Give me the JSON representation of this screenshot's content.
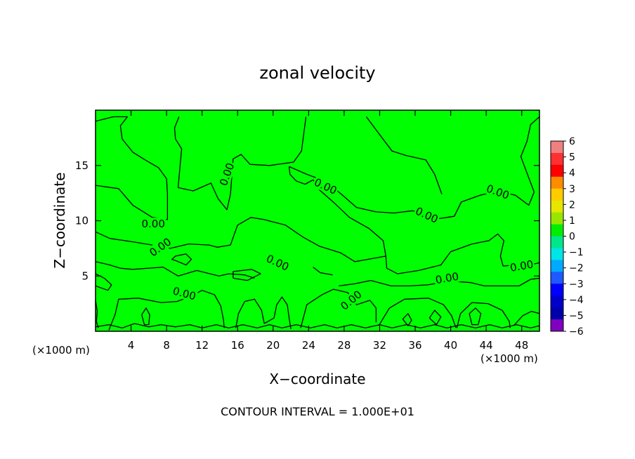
{
  "chart_data": {
    "type": "contour",
    "title": "zonal velocity",
    "xlabel": "X−coordinate",
    "ylabel": "Z−coordinate",
    "x_unit": "(×1000 m)",
    "y_unit": "(×1000 m)",
    "xlim": [
      0,
      50
    ],
    "ylim": [
      0,
      20
    ],
    "x_ticks": [
      4,
      8,
      12,
      16,
      20,
      24,
      28,
      32,
      36,
      40,
      44,
      48
    ],
    "x_tick_labels": [
      "4",
      "8",
      "12",
      "16",
      "20",
      "24",
      "28",
      "32",
      "36",
      "40",
      "44",
      "48"
    ],
    "y_ticks": [
      5,
      10,
      15
    ],
    "y_tick_labels": [
      "5",
      "10",
      "15"
    ],
    "fill_color": "#00ff00",
    "contour_level": "0.00",
    "contour_label": "0.00",
    "contour_label_sites": [
      {
        "x": 14.8,
        "y": 14.2,
        "angle": -70
      },
      {
        "x": 25.9,
        "y": 13.1,
        "angle": 25
      },
      {
        "x": 37.3,
        "y": 10.5,
        "angle": 25
      },
      {
        "x": 45.3,
        "y": 12.6,
        "angle": 20
      },
      {
        "x": 6.5,
        "y": 9.7,
        "angle": 0
      },
      {
        "x": 7.3,
        "y": 7.6,
        "angle": -35
      },
      {
        "x": 20.5,
        "y": 6.2,
        "angle": 25
      },
      {
        "x": 39.6,
        "y": 4.8,
        "angle": -10
      },
      {
        "x": 48.0,
        "y": 5.9,
        "angle": -10
      },
      {
        "x": 10.0,
        "y": 3.4,
        "angle": 15
      },
      {
        "x": 28.8,
        "y": 2.8,
        "angle": -40
      }
    ],
    "contours": [
      [
        [
          0,
          19
        ],
        [
          2,
          19.4
        ],
        [
          3.6,
          19.4
        ]
      ],
      [
        [
          3.6,
          19.4
        ],
        [
          2.8,
          18.6
        ],
        [
          3,
          17.4
        ],
        [
          4.2,
          16.2
        ],
        [
          5.8,
          15.4
        ],
        [
          7.1,
          14.8
        ],
        [
          8,
          13.8
        ],
        [
          8.1,
          12.4
        ],
        [
          8.1,
          10.1
        ],
        [
          6.4,
          10.3
        ],
        [
          4.2,
          11.4
        ],
        [
          2.6,
          12.9
        ],
        [
          0,
          13.2
        ]
      ],
      [
        [
          9.4,
          19.4
        ],
        [
          8.9,
          18.4
        ],
        [
          9,
          17.4
        ],
        [
          9.7,
          16.5
        ],
        [
          9.5,
          14.8
        ],
        [
          9.3,
          13
        ],
        [
          11,
          12.7
        ],
        [
          13,
          13.4
        ],
        [
          13.8,
          12
        ],
        [
          14.8,
          11
        ],
        [
          15.2,
          12.4
        ],
        [
          15.5,
          15.6
        ],
        [
          16.4,
          16
        ],
        [
          17.4,
          15.1
        ],
        [
          19.6,
          15
        ],
        [
          22.3,
          15.3
        ],
        [
          23.2,
          16.3
        ],
        [
          23.7,
          19.4
        ]
      ],
      [
        [
          0,
          9
        ],
        [
          1.6,
          8.4
        ],
        [
          4.1,
          8.1
        ],
        [
          6.4,
          7.8
        ],
        [
          8.4,
          7.5
        ],
        [
          10.5,
          7.9
        ],
        [
          12.8,
          7.8
        ],
        [
          13.7,
          7.6
        ],
        [
          15.2,
          7.8
        ],
        [
          16,
          9.6
        ],
        [
          17.5,
          10.3
        ],
        [
          19,
          10.1
        ],
        [
          21.4,
          9.6
        ],
        [
          23.4,
          8.5
        ],
        [
          25.2,
          7.7
        ],
        [
          27.6,
          7.1
        ],
        [
          29.2,
          6.3
        ],
        [
          31.3,
          6.6
        ],
        [
          32.7,
          6.8
        ],
        [
          32.4,
          8.2
        ],
        [
          30.8,
          9.3
        ],
        [
          28.6,
          10.3
        ],
        [
          26.9,
          11.6
        ],
        [
          25.2,
          12.8
        ],
        [
          24.5,
          13.7
        ],
        [
          23.6,
          13.3
        ],
        [
          22.6,
          13.6
        ],
        [
          21.9,
          14.2
        ],
        [
          21.8,
          14.9
        ]
      ],
      [
        [
          21.8,
          14.9
        ],
        [
          23.8,
          14.2
        ],
        [
          25.8,
          13.6
        ],
        [
          27.7,
          12.4
        ],
        [
          29.4,
          11.2
        ],
        [
          31.6,
          10.8
        ],
        [
          33.6,
          10.7
        ],
        [
          35.7,
          10.9
        ],
        [
          38.7,
          10.2
        ],
        [
          40.4,
          10.4
        ],
        [
          41.2,
          11.7
        ],
        [
          43.3,
          12.3
        ],
        [
          45.3,
          12.7
        ],
        [
          47.3,
          12.3
        ],
        [
          48.8,
          11.4
        ],
        [
          49.4,
          12.6
        ],
        [
          48.6,
          14.3
        ],
        [
          47.9,
          15.8
        ],
        [
          48.6,
          17.2
        ],
        [
          49,
          18.7
        ],
        [
          50,
          19.4
        ]
      ],
      [
        [
          30.5,
          19.4
        ],
        [
          31.9,
          17.9
        ],
        [
          33.4,
          16.3
        ],
        [
          35,
          15.9
        ],
        [
          37.2,
          15.5
        ],
        [
          38.2,
          14.2
        ],
        [
          39,
          12.4
        ]
      ],
      [
        [
          32.7,
          6.8
        ],
        [
          32.8,
          5.7
        ],
        [
          34,
          5.2
        ],
        [
          36.4,
          5.5
        ],
        [
          38.9,
          6
        ],
        [
          40,
          7.2
        ],
        [
          42.4,
          7.9
        ],
        [
          44.3,
          8.2
        ],
        [
          45.3,
          8.8
        ],
        [
          46,
          8.2
        ],
        [
          45.6,
          6.8
        ],
        [
          45.9,
          5.9
        ]
      ],
      [
        [
          45.9,
          5.9
        ],
        [
          47.2,
          6
        ],
        [
          48.9,
          6
        ],
        [
          50,
          6.2
        ]
      ],
      [
        [
          0,
          6.3
        ],
        [
          1.6,
          6
        ],
        [
          2.8,
          5.7
        ],
        [
          4.2,
          5.6
        ],
        [
          7.6,
          5.8
        ],
        [
          9.3,
          5
        ],
        [
          11.4,
          5.5
        ],
        [
          13.9,
          5
        ],
        [
          15,
          5.2
        ],
        [
          16.8,
          5.1
        ],
        [
          17.9,
          4.8
        ]
      ],
      [
        [
          0,
          4.1
        ],
        [
          1.4,
          3.7
        ],
        [
          1.8,
          4.2
        ],
        [
          1,
          4.8
        ],
        [
          0,
          5.2
        ]
      ],
      [
        [
          9,
          6.4
        ],
        [
          10.2,
          6
        ],
        [
          10.8,
          6.5
        ],
        [
          10.2,
          7
        ],
        [
          9,
          6.8
        ],
        [
          8.6,
          6.5
        ],
        [
          9,
          6.4
        ]
      ],
      [
        [
          15.5,
          4.8
        ],
        [
          17.1,
          4.6
        ],
        [
          18.6,
          5.2
        ],
        [
          17.6,
          5.6
        ],
        [
          15.5,
          5.4
        ],
        [
          15.5,
          4.8
        ]
      ],
      [
        [
          27.4,
          4.1
        ],
        [
          29.2,
          4.3
        ],
        [
          31,
          4.6
        ],
        [
          33.3,
          4.1
        ],
        [
          35.3,
          4.1
        ],
        [
          37.4,
          4.2
        ],
        [
          38.9,
          4.4
        ],
        [
          40.6,
          4.5
        ],
        [
          42.3,
          4.4
        ],
        [
          43.8,
          4.1
        ],
        [
          46.1,
          4.1
        ],
        [
          47.7,
          4.1
        ],
        [
          49,
          4.7
        ],
        [
          50,
          4.8
        ]
      ],
      [
        [
          26.7,
          5.1
        ],
        [
          25.3,
          5.3
        ],
        [
          24.5,
          5.8
        ]
      ],
      [
        [
          1.5,
          0.1
        ],
        [
          2.2,
          1.5
        ],
        [
          2.6,
          2.9
        ],
        [
          4.8,
          3
        ],
        [
          7.4,
          2.6
        ],
        [
          9.2,
          2.7
        ],
        [
          10.8,
          3.2
        ],
        [
          12,
          3.7
        ],
        [
          13.4,
          3.3
        ],
        [
          14.1,
          2.3
        ],
        [
          14.4,
          1.1
        ],
        [
          14.5,
          0.3
        ]
      ],
      [
        [
          15.8,
          0.3
        ],
        [
          16.1,
          1.6
        ],
        [
          16.8,
          2.7
        ],
        [
          17.9,
          2.9
        ],
        [
          18.7,
          1.9
        ],
        [
          19,
          0.7
        ]
      ],
      [
        [
          19,
          0.7
        ],
        [
          20.1,
          1.2
        ],
        [
          20.4,
          2.4
        ],
        [
          21,
          3.1
        ],
        [
          21.6,
          2.4
        ],
        [
          21.8,
          1.2
        ],
        [
          22,
          0.2
        ]
      ],
      [
        [
          23.1,
          0.3
        ],
        [
          23.8,
          2.4
        ],
        [
          25.5,
          3.3
        ],
        [
          26.8,
          3.8
        ],
        [
          28.4,
          3.5
        ],
        [
          29.4,
          2.4
        ],
        [
          30.9,
          2.8
        ],
        [
          31.6,
          2.1
        ],
        [
          31.6,
          0.8
        ]
      ],
      [
        [
          31.9,
          0.5
        ],
        [
          33.1,
          2.1
        ],
        [
          34.8,
          2.9
        ],
        [
          37.5,
          3
        ],
        [
          39.2,
          2.4
        ],
        [
          40.1,
          1.4
        ],
        [
          40.6,
          0.3
        ]
      ],
      [
        [
          40.7,
          0.3
        ],
        [
          41.1,
          1.6
        ],
        [
          42.4,
          2.6
        ],
        [
          44.2,
          2.5
        ],
        [
          45.8,
          1.9
        ],
        [
          46.6,
          0.9
        ],
        [
          46.7,
          0.3
        ]
      ],
      [
        [
          47.1,
          0.5
        ],
        [
          48.1,
          1.4
        ],
        [
          49.1,
          1.8
        ],
        [
          50,
          1.6
        ]
      ],
      [
        [
          5.2,
          1.5
        ],
        [
          5.7,
          2.1
        ],
        [
          6.1,
          1.5
        ],
        [
          6,
          0.6
        ],
        [
          5.5,
          0.6
        ],
        [
          5.2,
          1.5
        ]
      ],
      [
        [
          34.6,
          1.1
        ],
        [
          35.2,
          1.6
        ],
        [
          35.6,
          1
        ],
        [
          35.2,
          0.5
        ],
        [
          34.6,
          1.1
        ]
      ],
      [
        [
          37.6,
          1.2
        ],
        [
          38.2,
          1.9
        ],
        [
          38.9,
          1.3
        ],
        [
          38.4,
          0.6
        ],
        [
          37.6,
          1.2
        ]
      ],
      [
        [
          42.1,
          1.6
        ],
        [
          42.8,
          2.1
        ],
        [
          43.4,
          1.6
        ],
        [
          43.1,
          0.6
        ],
        [
          42.4,
          0.6
        ],
        [
          42.1,
          1.6
        ]
      ],
      [
        [
          0,
          0.4
        ],
        [
          1.5,
          0.6
        ],
        [
          3,
          0.3
        ],
        [
          4.4,
          0.7
        ],
        [
          6,
          0.4
        ],
        [
          7.4,
          0.6
        ],
        [
          9,
          0.4
        ],
        [
          10.6,
          0.6
        ],
        [
          12,
          0.3
        ],
        [
          13.6,
          0.6
        ],
        [
          15,
          0.3
        ],
        [
          16.6,
          0.6
        ],
        [
          18.2,
          0.3
        ],
        [
          19.6,
          0.6
        ],
        [
          21,
          0.3
        ],
        [
          22.6,
          0.6
        ],
        [
          24.2,
          0.3
        ],
        [
          25.8,
          0.6
        ],
        [
          27.2,
          0.3
        ],
        [
          28.8,
          0.6
        ],
        [
          30.4,
          0.3
        ],
        [
          32,
          0.6
        ],
        [
          33.4,
          0.3
        ],
        [
          35,
          0.6
        ],
        [
          36.6,
          0.3
        ],
        [
          38.2,
          0.6
        ],
        [
          39.6,
          0.3
        ],
        [
          41.2,
          0.6
        ],
        [
          42.8,
          0.3
        ],
        [
          44.4,
          0.6
        ],
        [
          45.8,
          0.3
        ],
        [
          47.4,
          0.6
        ],
        [
          49,
          0.3
        ],
        [
          50,
          0.5
        ]
      ],
      [
        [
          0,
          2.8
        ],
        [
          0.2,
          1.8
        ],
        [
          0.1,
          0.9
        ],
        [
          0.3,
          0.3
        ]
      ]
    ],
    "colorbar": {
      "levels": [
        "6",
        "5",
        "4",
        "3",
        "2",
        "1",
        "0",
        "−1",
        "−2",
        "−3",
        "−4",
        "−5",
        "−6"
      ],
      "colors": [
        "#f08080",
        "#ff3030",
        "#ff0000",
        "#ff8c00",
        "#ffcc00",
        "#e6e600",
        "#99e600",
        "#00ee00",
        "#00e68a",
        "#00e6e6",
        "#00aaff",
        "#1e5aff",
        "#0000ff",
        "#0000cc",
        "#0000aa",
        "#8000c0"
      ]
    },
    "footer": "CONTOUR INTERVAL = 1.000E+01"
  }
}
